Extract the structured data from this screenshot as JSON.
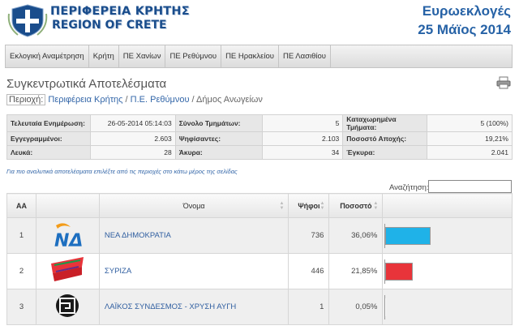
{
  "header": {
    "logo_line1": "ΠΕΡΙΦΕΡΕΙΑ ΚΡΗΤΗΣ",
    "logo_line2": "REGION OF CRETE",
    "election_title": "Ευρωεκλογές",
    "election_date": "25 Μάϊος 2014",
    "logo_icon": "greek-coat-of-arms-icon"
  },
  "nav": {
    "items": [
      {
        "label": "Εκλογική Αναμέτρηση"
      },
      {
        "label": "Κρήτη"
      },
      {
        "label": "ΠΕ Χανίων"
      },
      {
        "label": "ΠΕ Ρεθύμνου"
      },
      {
        "label": "ΠΕ Ηρακλείου"
      },
      {
        "label": "ΠΕ Λασιθίου"
      }
    ]
  },
  "page": {
    "title": "Συγκεντρωτικά Αποτελέσματα",
    "print_icon": "printer-icon"
  },
  "breadcrumb": {
    "label": "Περιοχή:",
    "link1": "Περιφέρεια Κρήτης",
    "sep": "/",
    "link2": "Π.Ε. Ρεθύμνου",
    "current": "Δήμος Ανωγείων"
  },
  "info": {
    "rows": [
      [
        {
          "k": "Τελευταία Ενημέρωση:",
          "v": "26-05-2014 05:14:03"
        },
        {
          "k": "Σύνολο Τμημάτων:",
          "v": "5"
        },
        {
          "k": "Καταχωρημένα Τμήματα:",
          "v": "5 (100%)"
        }
      ],
      [
        {
          "k": "Εγγεγραμμένοι:",
          "v": "2.603"
        },
        {
          "k": "Ψηφίσαντες:",
          "v": "2.103"
        },
        {
          "k": "Ποσοστό Αποχής:",
          "v": "19,21%"
        }
      ],
      [
        {
          "k": "Λευκά:",
          "v": "28"
        },
        {
          "k": "Άκυρα:",
          "v": "34"
        },
        {
          "k": "Έγκυρα:",
          "v": "2.041"
        }
      ]
    ]
  },
  "note": "Για πιο αναλυτικά αποτελέσματα επιλέξτε από τις περιοχές στο κάτω μέρος της σελίδας",
  "search": {
    "label": "Αναζήτηση:",
    "value": ""
  },
  "results": {
    "columns": {
      "aa": "ΑΑ",
      "name": "Όνομα",
      "votes": "Ψήφοι",
      "percent": "Ποσοστό"
    },
    "rows": [
      {
        "aa": "1",
        "name": "ΝΕΑ ΔΗΜΟΚΡΑΤΙΑ",
        "votes": "736",
        "percent": "36,06%",
        "share": 36.06,
        "color": "#1fb2e8",
        "logo": "nea-dimokratia-logo-icon"
      },
      {
        "aa": "2",
        "name": "ΣΥΡΙΖΑ",
        "votes": "446",
        "percent": "21,85%",
        "share": 21.85,
        "color": "#e8343a",
        "logo": "syriza-logo-icon"
      },
      {
        "aa": "3",
        "name": "ΛΑΪΚΟΣ ΣΥΝΔΕΣΜΟΣ - ΧΡΥΣΗ ΑΥΓΗ",
        "votes": "1",
        "percent": "0,05%",
        "share": 0.05,
        "color": "#ffffff",
        "logo": "xrysi-avgi-logo-icon"
      }
    ]
  }
}
